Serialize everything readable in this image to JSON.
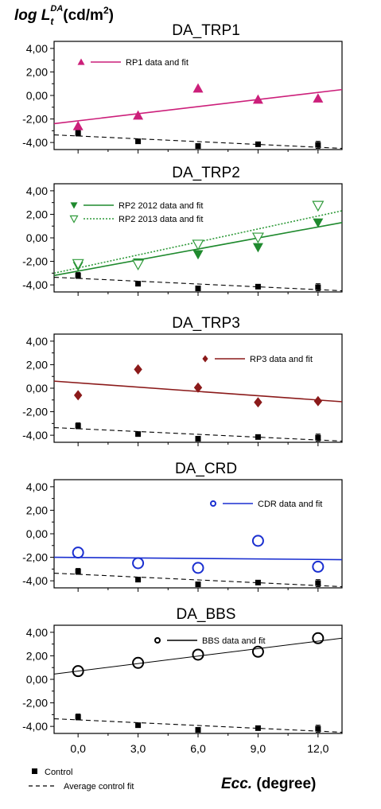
{
  "ylabel": {
    "prefix": "log L",
    "sub": "t",
    "sup": "DA",
    "unit_pre": "(cd/m",
    "unit_sup": "2",
    "unit_post": ")"
  },
  "xlabel": {
    "bold_italic": "Ecc.",
    "rest": " (degree)"
  },
  "bottom_legend": {
    "control": "Control",
    "control_fit": "Average control fit"
  },
  "chart_data": [
    {
      "type": "scatter",
      "title": "DA_TRP1",
      "x": [
        0,
        3,
        6,
        9,
        12
      ],
      "xlim": [
        -1.2,
        13.2
      ],
      "ylim": [
        -4.6,
        4.6
      ],
      "yticks": [
        4,
        2,
        0,
        -2,
        -4
      ],
      "ytick_labels": [
        "4,00",
        "2,00",
        "0,00",
        "-2,00",
        "-4,00"
      ],
      "xtick_labels": [
        "0,0",
        "3,0",
        "6,0",
        "9,0",
        "12,0"
      ],
      "show_xticklabels": false,
      "series": [
        {
          "name": "RP1 data and fit",
          "marker": "triangle-up",
          "color": "#cc1f7a",
          "y": [
            -2.6,
            -1.7,
            0.6,
            -0.35,
            -0.25
          ],
          "fit": {
            "y_at_xmin": -2.4,
            "y_at_xmax": 0.5,
            "dash": "solid"
          }
        }
      ],
      "control": {
        "y": [
          -3.2,
          -3.9,
          -4.3,
          -4.15,
          -4.2
        ],
        "err": [
          0.25,
          0.18,
          0.2,
          0.18,
          0.3
        ],
        "fit": {
          "y_at_xmin": -3.35,
          "y_at_xmax": -4.5
        }
      }
    },
    {
      "type": "scatter",
      "title": "DA_TRP2",
      "x": [
        0,
        3,
        6,
        9,
        12
      ],
      "xlim": [
        -1.2,
        13.2
      ],
      "ylim": [
        -4.6,
        4.6
      ],
      "yticks": [
        4,
        2,
        0,
        -2,
        -4
      ],
      "ytick_labels": [
        "4,00",
        "2,00",
        "0,00",
        "-2,00",
        "-4,00"
      ],
      "xtick_labels": [
        "0,0",
        "3,0",
        "6,0",
        "9,0",
        "12,0"
      ],
      "show_xticklabels": false,
      "series": [
        {
          "name": "RP2 2012 data and fit",
          "marker": "triangle-down-filled",
          "color": "#1f8a2e",
          "y": [
            -2.4,
            -2.1,
            -1.4,
            -0.8,
            1.3
          ],
          "fit": {
            "y_at_xmin": -3.2,
            "y_at_xmax": 1.3,
            "dash": "solid"
          }
        },
        {
          "name": "RP2 2013 data and fit",
          "marker": "triangle-down-open",
          "color": "#2f9a3a",
          "y": [
            -2.2,
            -2.25,
            -0.55,
            0.05,
            2.75
          ],
          "fit": {
            "y_at_xmin": -3.0,
            "y_at_xmax": 2.3,
            "dash": "dotted"
          }
        }
      ],
      "control": {
        "y": [
          -3.2,
          -3.9,
          -4.3,
          -4.15,
          -4.2
        ],
        "err": [
          0.25,
          0.18,
          0.2,
          0.18,
          0.3
        ],
        "fit": {
          "y_at_xmin": -3.35,
          "y_at_xmax": -4.5
        }
      }
    },
    {
      "type": "scatter",
      "title": "DA_TRP3",
      "x": [
        0,
        3,
        6,
        9,
        12
      ],
      "xlim": [
        -1.2,
        13.2
      ],
      "ylim": [
        -4.6,
        4.6
      ],
      "yticks": [
        4,
        2,
        0,
        -2,
        -4
      ],
      "ytick_labels": [
        "4,00",
        "2,00",
        "0,00",
        "-2,00",
        "-4,00"
      ],
      "xtick_labels": [
        "0,0",
        "3,0",
        "6,0",
        "9,0",
        "12,0"
      ],
      "show_xticklabels": false,
      "series": [
        {
          "name": "RP3 data and fit",
          "marker": "diamond",
          "color": "#8b1a1a",
          "y": [
            -0.6,
            1.6,
            0.05,
            -1.2,
            -1.1
          ],
          "fit": {
            "y_at_xmin": 0.6,
            "y_at_xmax": -1.15,
            "dash": "solid"
          }
        }
      ],
      "control": {
        "y": [
          -3.2,
          -3.9,
          -4.3,
          -4.15,
          -4.2
        ],
        "err": [
          0.25,
          0.18,
          0.2,
          0.18,
          0.3
        ],
        "fit": {
          "y_at_xmin": -3.35,
          "y_at_xmax": -4.5
        }
      }
    },
    {
      "type": "scatter",
      "title": "DA_CRD",
      "x": [
        0,
        3,
        6,
        9,
        12
      ],
      "xlim": [
        -1.2,
        13.2
      ],
      "ylim": [
        -4.6,
        4.6
      ],
      "yticks": [
        4,
        2,
        0,
        -2,
        -4
      ],
      "ytick_labels": [
        "4,00",
        "2,00",
        "0,00",
        "-2,00",
        "-4,00"
      ],
      "xtick_labels": [
        "0,0",
        "3,0",
        "6,0",
        "9,0",
        "12,0"
      ],
      "show_xticklabels": false,
      "series": [
        {
          "name": "CDR data and fit",
          "marker": "circle-open",
          "color": "#1a2fd0",
          "y": [
            -1.6,
            -2.5,
            -2.9,
            -0.6,
            -2.8
          ],
          "fit": {
            "y_at_xmin": -2.0,
            "y_at_xmax": -2.2,
            "dash": "solid"
          }
        }
      ],
      "control": {
        "y": [
          -3.2,
          -3.9,
          -4.3,
          -4.15,
          -4.2
        ],
        "err": [
          0.25,
          0.18,
          0.2,
          0.18,
          0.3
        ],
        "fit": {
          "y_at_xmin": -3.35,
          "y_at_xmax": -4.5
        }
      }
    },
    {
      "type": "scatter",
      "title": "DA_BBS",
      "x": [
        0,
        3,
        6,
        9,
        12
      ],
      "xlim": [
        -1.2,
        13.2
      ],
      "ylim": [
        -4.6,
        4.6
      ],
      "yticks": [
        4,
        2,
        0,
        -2,
        -4
      ],
      "ytick_labels": [
        "4,00",
        "2,00",
        "0,00",
        "-2,00",
        "-4,00"
      ],
      "xtick_labels": [
        "0,0",
        "3,0",
        "6,0",
        "9,0",
        "12,0"
      ],
      "show_xticklabels": true,
      "series": [
        {
          "name": "BBS data and fit",
          "marker": "circle-open",
          "color": "#000000",
          "y": [
            0.7,
            1.4,
            2.1,
            2.35,
            3.5
          ],
          "fit": {
            "y_at_xmin": 0.45,
            "y_at_xmax": 3.5,
            "dash": "solid"
          }
        }
      ],
      "control": {
        "y": [
          -3.2,
          -3.9,
          -4.3,
          -4.15,
          -4.2
        ],
        "err": [
          0.25,
          0.18,
          0.2,
          0.18,
          0.3
        ],
        "fit": {
          "y_at_xmin": -3.35,
          "y_at_xmax": -4.5
        }
      }
    }
  ]
}
